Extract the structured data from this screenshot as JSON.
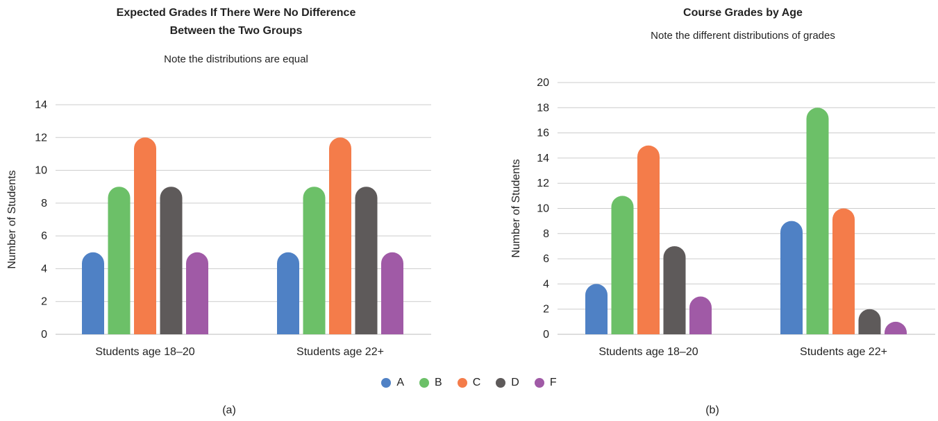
{
  "legend": [
    {
      "label": "A",
      "color": "#4f81c5"
    },
    {
      "label": "B",
      "color": "#6cc068"
    },
    {
      "label": "C",
      "color": "#f47c4a"
    },
    {
      "label": "D",
      "color": "#5e5a5a"
    },
    {
      "label": "F",
      "color": "#a05aa6"
    }
  ],
  "panels": {
    "a": "(a)",
    "b": "(b)"
  },
  "chart_data": [
    {
      "type": "bar",
      "title_line1": "Expected Grades If There Were No Difference",
      "title_line2": "Between the Two Groups",
      "subtitle": "Note the distributions are equal",
      "xlabel": "",
      "ylabel": "Number of Students",
      "ylim": [
        0,
        14
      ],
      "yticks": [
        0,
        2,
        4,
        6,
        8,
        10,
        12,
        14
      ],
      "grid": true,
      "categories": [
        "Students age 18–20",
        "Students age 22+"
      ],
      "series": [
        {
          "name": "A",
          "values": [
            5,
            5
          ]
        },
        {
          "name": "B",
          "values": [
            9,
            9
          ]
        },
        {
          "name": "C",
          "values": [
            12,
            12
          ]
        },
        {
          "name": "D",
          "values": [
            9,
            9
          ]
        },
        {
          "name": "F",
          "values": [
            5,
            5
          ]
        }
      ]
    },
    {
      "type": "bar",
      "title_line1": "Course Grades by Age",
      "title_line2": "",
      "subtitle": "Note the different distributions of grades",
      "xlabel": "",
      "ylabel": "Number of Students",
      "ylim": [
        0,
        20
      ],
      "yticks": [
        0,
        2,
        4,
        6,
        8,
        10,
        12,
        14,
        16,
        18,
        20
      ],
      "grid": true,
      "categories": [
        "Students age 18–20",
        "Students age 22+"
      ],
      "series": [
        {
          "name": "A",
          "values": [
            4,
            9
          ]
        },
        {
          "name": "B",
          "values": [
            11,
            18
          ]
        },
        {
          "name": "C",
          "values": [
            15,
            10
          ]
        },
        {
          "name": "D",
          "values": [
            7,
            2
          ]
        },
        {
          "name": "F",
          "values": [
            3,
            1
          ]
        }
      ]
    }
  ]
}
